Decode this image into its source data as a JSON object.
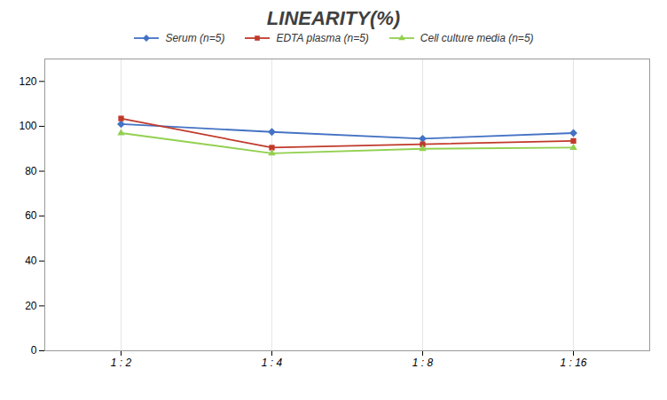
{
  "chart_data": {
    "type": "line",
    "title": "LINEARITY(%)",
    "categories": [
      "1 : 2",
      "1 : 4",
      "1 : 8",
      "1 : 16"
    ],
    "series": [
      {
        "name": "Serum (n=5)",
        "color": "#4472C4",
        "marker": "diamond",
        "values": [
          101.0,
          97.5,
          94.5,
          97.0
        ]
      },
      {
        "name": "EDTA plasma (n=5)",
        "color": "#C0392B",
        "marker": "square",
        "values": [
          103.5,
          90.5,
          92.0,
          93.5
        ]
      },
      {
        "name": "Cell culture media (n=5)",
        "color": "#92D050",
        "marker": "triangle",
        "values": [
          97.0,
          88.0,
          90.0,
          90.5
        ]
      }
    ],
    "ylim": [
      0,
      130
    ],
    "yticks": [
      0,
      20,
      40,
      60,
      80,
      100,
      120
    ],
    "grid": true,
    "legend": "top"
  }
}
